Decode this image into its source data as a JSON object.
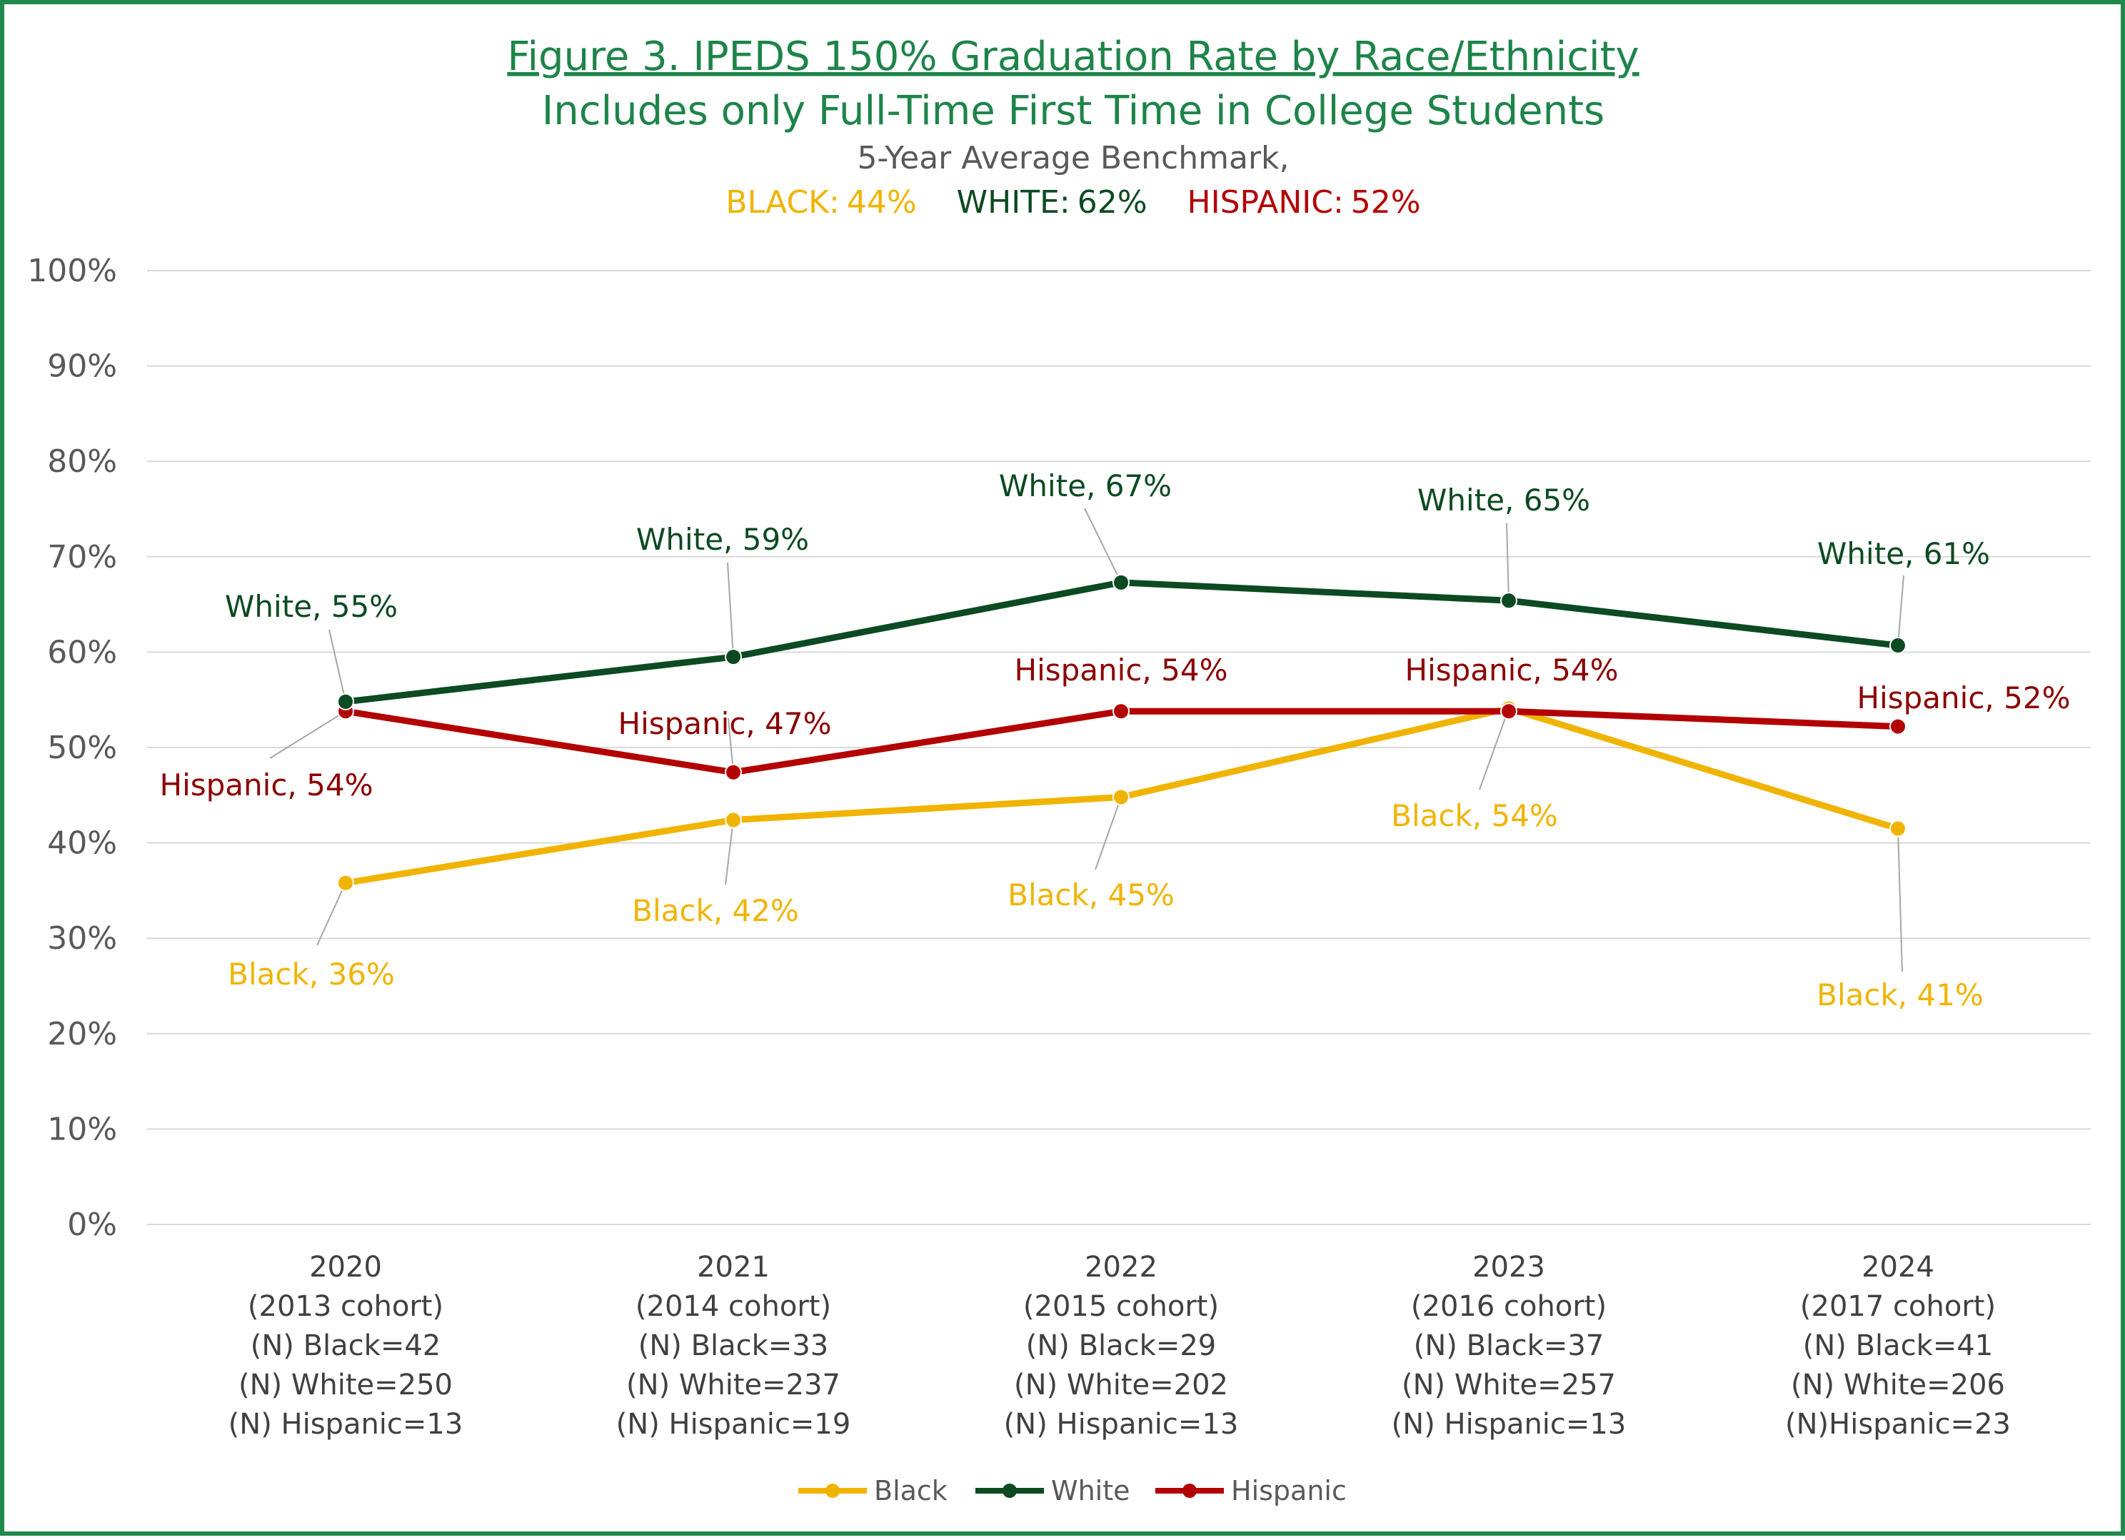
{
  "chart_data": {
    "type": "line",
    "title": "Figure 3. IPEDS 150% Graduation Rate by Race/Ethnicity",
    "subtitle_line2": "Includes only Full-Time First Time in College Students",
    "benchmark_heading": "5-Year Average Benchmark,",
    "benchmarks": [
      {
        "label": "BLACK:",
        "value": "44%",
        "color": "#f0b400"
      },
      {
        "label": "WHITE:",
        "value": "62%",
        "color": "#0c4a22"
      },
      {
        "label": "HISPANIC:",
        "value": "52%",
        "color": "#b30000"
      }
    ],
    "ylim": [
      0,
      100
    ],
    "yticks": [
      0,
      10,
      20,
      30,
      40,
      50,
      60,
      70,
      80,
      90,
      100
    ],
    "ytick_labels": [
      "0%",
      "10%",
      "20%",
      "30%",
      "40%",
      "50%",
      "60%",
      "70%",
      "80%",
      "90%",
      "100%"
    ],
    "grid": true,
    "legend_position": "bottom-center",
    "categories": [
      {
        "year": "2020",
        "lines": [
          "(2013 cohort)",
          "(N) Black=42",
          "(N) White=250",
          "(N) Hispanic=13"
        ]
      },
      {
        "year": "2021",
        "lines": [
          "(2014 cohort)",
          "(N) Black=33",
          "(N) White=237",
          "(N) Hispanic=19"
        ]
      },
      {
        "year": "2022",
        "lines": [
          "(2015 cohort)",
          "(N) Black=29",
          "(N) White=202",
          "(N) Hispanic=13"
        ]
      },
      {
        "year": "2023",
        "lines": [
          "(2016 cohort)",
          "(N) Black=37",
          "(N) White=257",
          "(N) Hispanic=13"
        ]
      },
      {
        "year": "2024",
        "lines": [
          "(2017 cohort)",
          "(N) Black=41",
          "(N) White=206",
          "(N)Hispanic=23"
        ]
      }
    ],
    "series": [
      {
        "name": "Black",
        "color": "#f0b400",
        "label_color": "#f0b400",
        "values": [
          35.8,
          42.4,
          44.8,
          54.1,
          41.5
        ],
        "labels": [
          "Black, 36%",
          "Black, 42%",
          "Black, 45%",
          "Black, 54%",
          "Black, 41%"
        ]
      },
      {
        "name": "White",
        "color": "#0c4a22",
        "label_color": "#0c4a22",
        "values": [
          54.8,
          59.5,
          67.3,
          65.4,
          60.7
        ],
        "labels": [
          "White, 55%",
          "White, 59%",
          "White, 67%",
          "White, 65%",
          "White, 61%"
        ]
      },
      {
        "name": "Hispanic",
        "color": "#b30000",
        "label_color": "#8b0000",
        "values": [
          53.8,
          47.4,
          53.8,
          53.8,
          52.2
        ],
        "labels": [
          "Hispanic, 54%",
          "Hispanic, 47%",
          "Hispanic, 54%",
          "Hispanic, 54%",
          "Hispanic, 52%"
        ]
      }
    ]
  }
}
